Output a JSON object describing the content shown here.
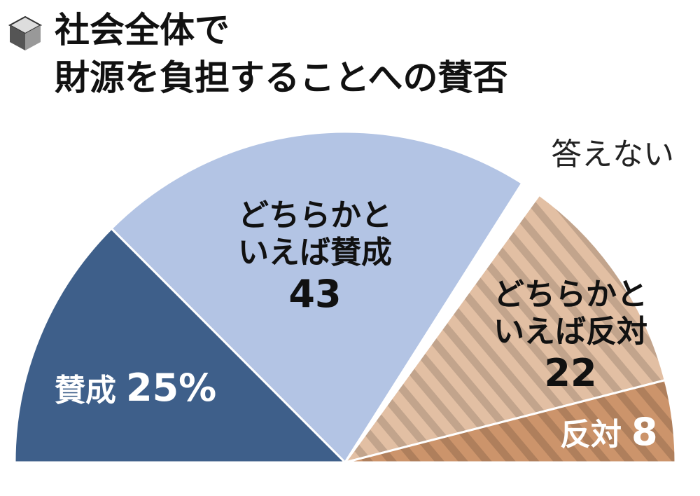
{
  "chart_data": {
    "type": "half-pie",
    "title": [
      "社会全体で",
      "財源を負担することへの賛否"
    ],
    "categories": [
      "賛成",
      "どちらかといえば賛成",
      "答えない",
      "どちらかといえば反対",
      "反対"
    ],
    "values": [
      25,
      43,
      2,
      22,
      8
    ],
    "value_labels": [
      "25%",
      "43",
      null,
      "22",
      "8"
    ],
    "colors": [
      "#3e5f8a",
      "#b3c4e4",
      "#ffffff",
      "#e2bfa3",
      "#cc946b"
    ],
    "hatched": [
      false,
      false,
      false,
      true,
      true
    ]
  }
}
